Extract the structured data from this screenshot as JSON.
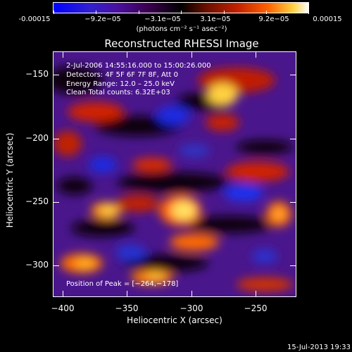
{
  "colorbar": {
    "tick_labels": [
      "-0.00015",
      "−9.2e−05",
      "−3.1e−05",
      "3.1e−05",
      "9.2e−05",
      "0.00015"
    ],
    "units": "(photons cm⁻² s⁻¹ asec⁻²)"
  },
  "image": {
    "title": "Reconstructed RHESSI Image",
    "time_range": "2-Jul-2006 14:55:16.000 to 15:00:26.000",
    "detectors": "Detectors: 4F 5F 6F 7F 8F, Att 0",
    "energy_range": "Energy Range: 12.0 – 25.0 keV",
    "clean_counts": "Clean     Total counts: 6.32E+03",
    "peak": "Position of Peak = [−264,−178]"
  },
  "axes": {
    "x_label": "Heliocentric X (arcsec)",
    "y_label": "Heliocentric Y (arcsec)",
    "x_ticks": [
      "−400",
      "−350",
      "−300",
      "−250"
    ],
    "y_ticks": [
      "−150",
      "−200",
      "−250",
      "−300"
    ]
  },
  "footer": {
    "timestamp": "15-Jul-2013 19:33"
  }
}
